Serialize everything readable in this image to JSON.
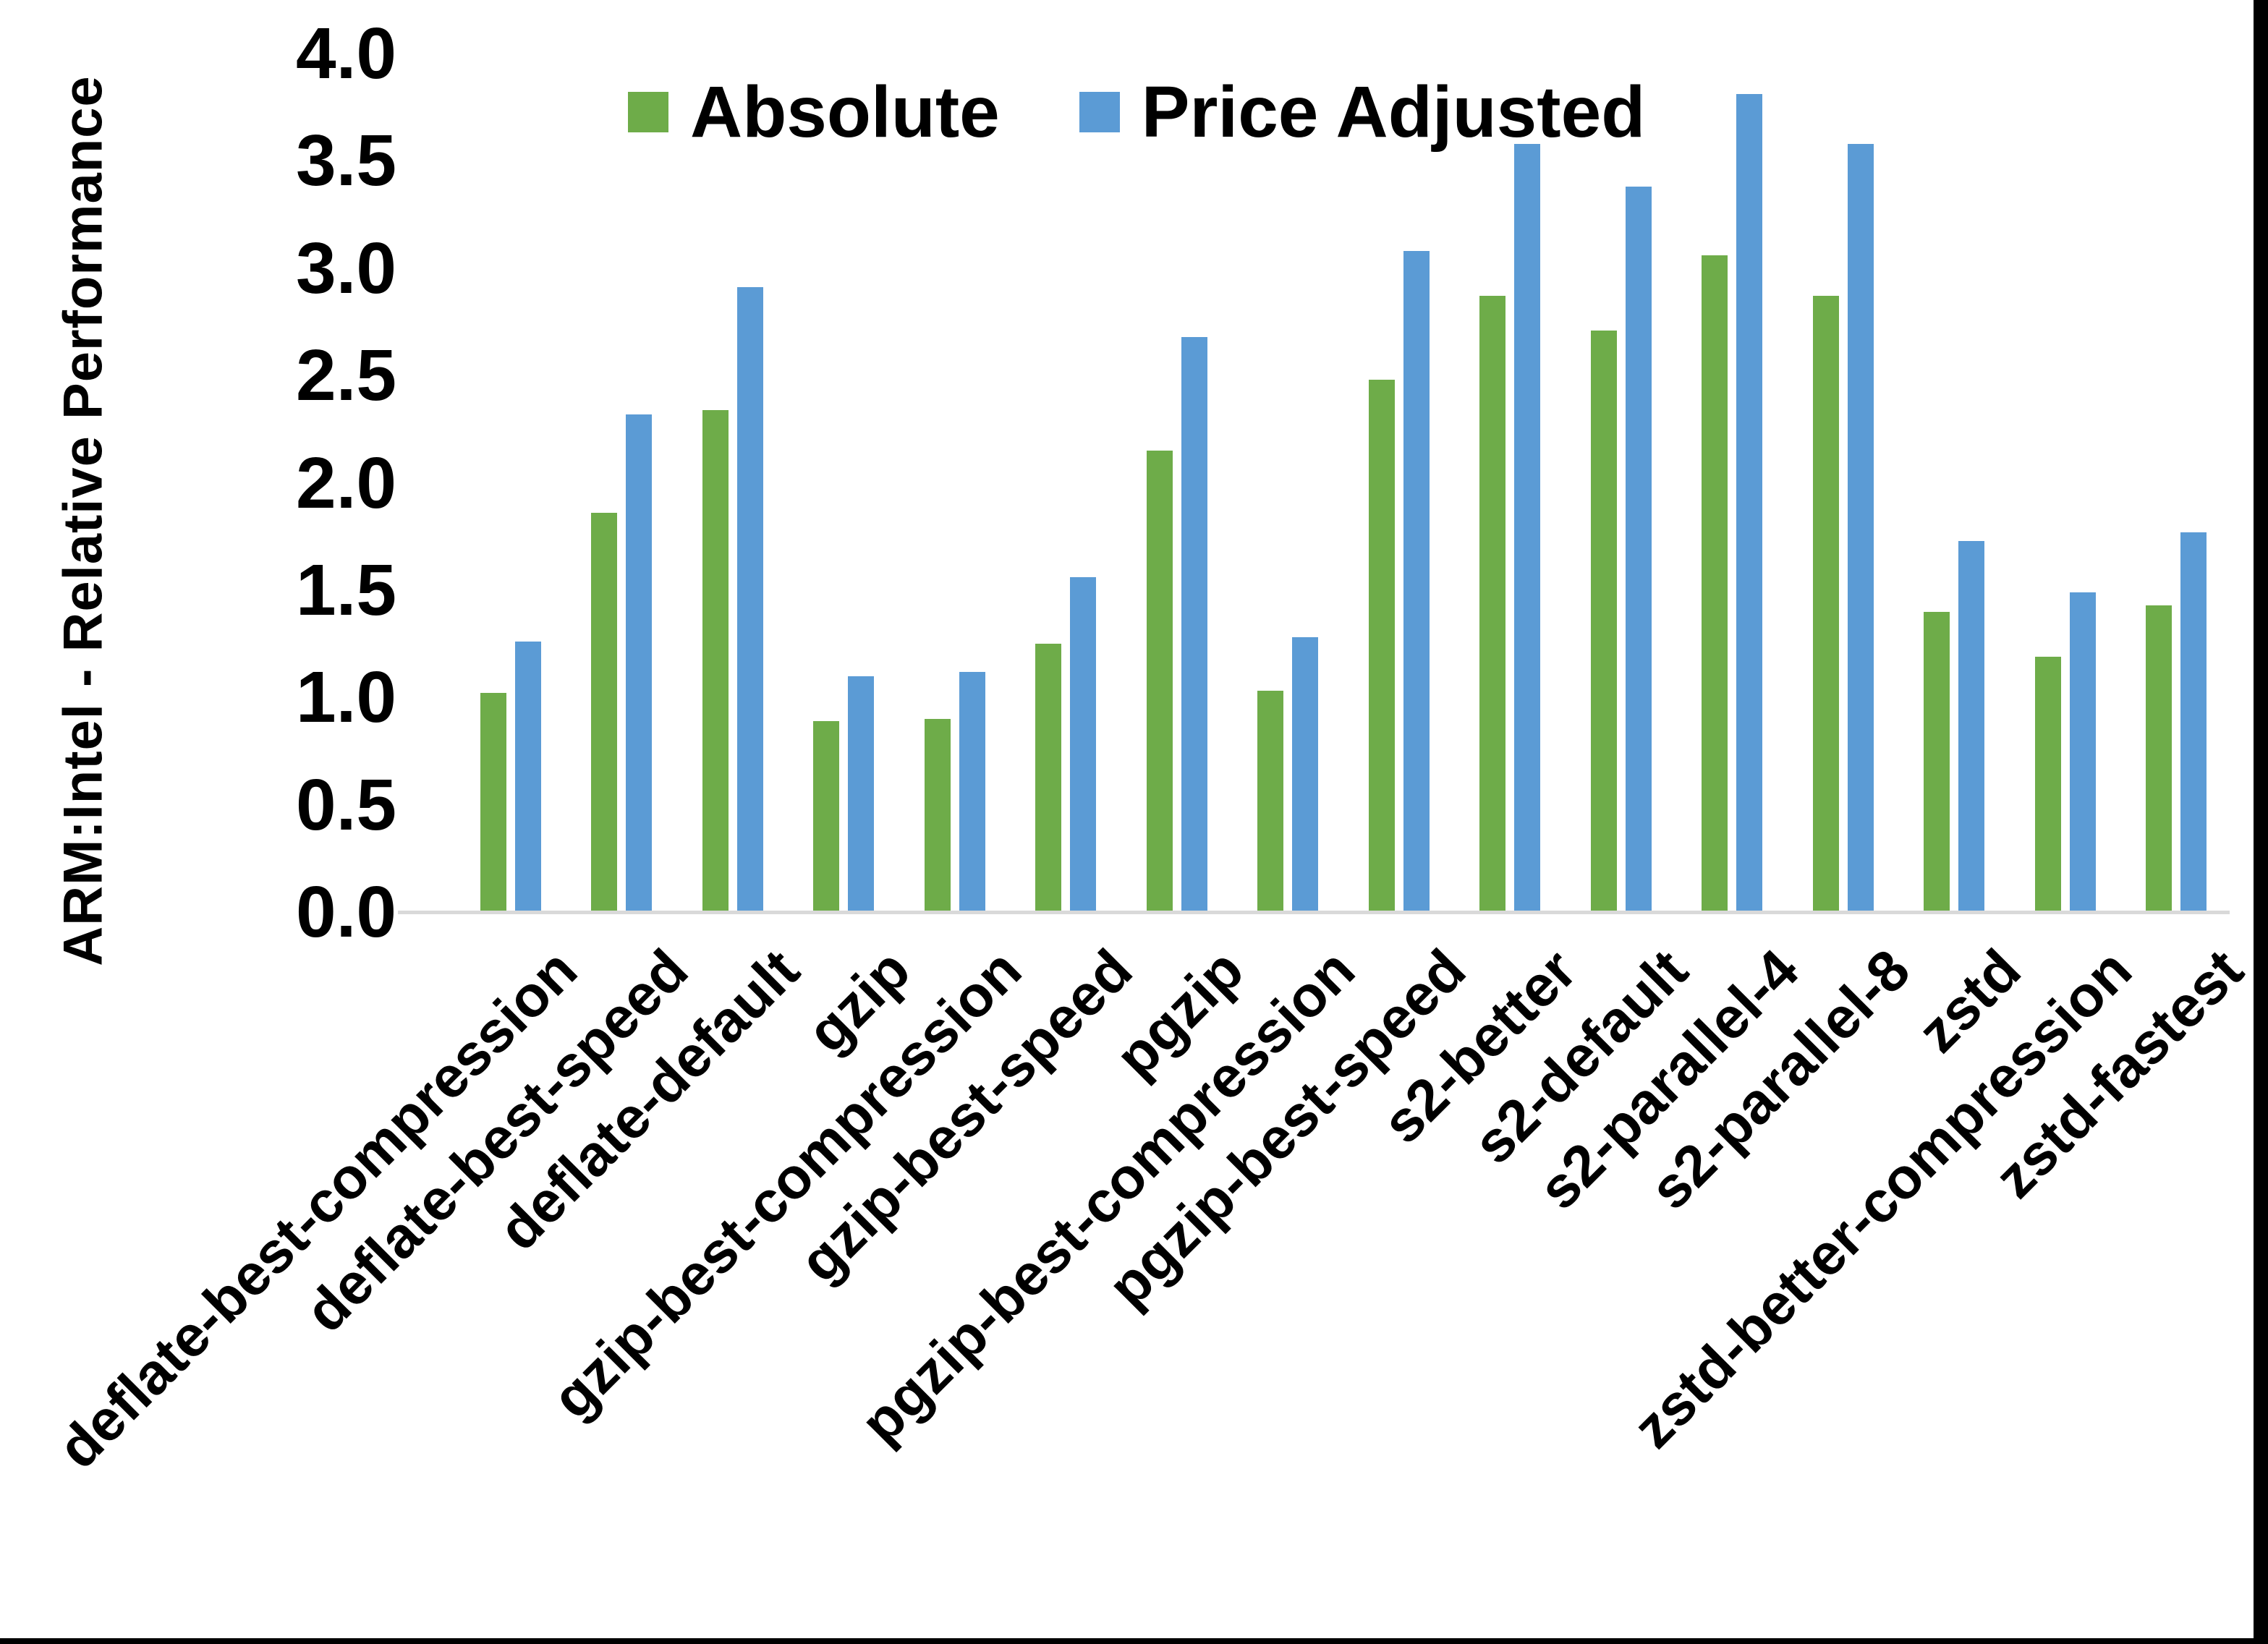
{
  "chart_data": {
    "type": "bar",
    "title": "",
    "ylabel": "ARM:Intel - Relative Performance",
    "xlabel": "",
    "ylim": [
      0.0,
      4.0
    ],
    "ytick_step": 0.5,
    "ytick_labels": [
      "4.0",
      "3.5",
      "3.0",
      "2.5",
      "2.0",
      "1.5",
      "1.0",
      "0.5",
      "0.0"
    ],
    "grid": false,
    "legend_position": "top-center",
    "axis_line_color": "#d9d9d9",
    "text_color": "#000000",
    "categories": [
      "deflate-best-compression",
      "deflate-best-speed",
      "deflate-default",
      "gzip",
      "gzip-best-compression",
      "gzip-best-speed",
      "pgzip",
      "pgzip-best-compression",
      "pgzip-best-speed",
      "s2-better",
      "s2-default",
      "s2-parallel-4",
      "s2-parallel-8",
      "zstd",
      "zstd-better-compression",
      "zstd-fastest"
    ],
    "series": [
      {
        "name": "Absolute",
        "color": "#6eac49",
        "values": [
          1.02,
          1.86,
          2.34,
          0.89,
          0.9,
          1.25,
          2.15,
          1.03,
          2.48,
          2.87,
          2.71,
          3.06,
          2.87,
          1.4,
          1.19,
          1.43
        ]
      },
      {
        "name": "Price Adjusted",
        "color": "#5b9bd5",
        "values": [
          1.26,
          2.32,
          2.91,
          1.1,
          1.12,
          1.56,
          2.68,
          1.28,
          3.08,
          3.58,
          3.38,
          3.81,
          3.58,
          1.73,
          1.49,
          1.77
        ]
      }
    ]
  }
}
